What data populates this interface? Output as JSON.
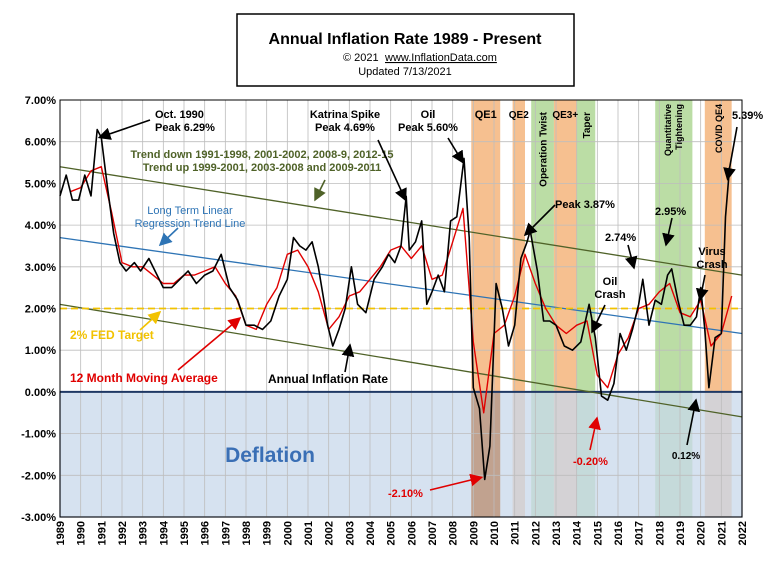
{
  "title_box": {
    "title": "Annual  Inflation Rate 1989 - Present",
    "copyright": "© 2021",
    "site": "www.InflationData.com",
    "updated": "Updated  7/13/2021"
  },
  "chart_data": {
    "type": "line",
    "ylim": [
      -3,
      7
    ],
    "xlim": [
      1989,
      2022
    ],
    "y_ticks": [
      "7.00%",
      "6.00%",
      "5.00%",
      "4.00%",
      "3.00%",
      "2.00%",
      "1.00%",
      "0.00%",
      "-1.00%",
      "-2.00%",
      "-3.00%"
    ],
    "y_tick_values": [
      7,
      6,
      5,
      4,
      3,
      2,
      1,
      0,
      -1,
      -2,
      -3
    ],
    "x_ticks": [
      "1989",
      "1990",
      "1991",
      "1992",
      "1993",
      "1994",
      "1995",
      "1996",
      "1997",
      "1998",
      "1999",
      "2000",
      "2001",
      "2002",
      "2003",
      "2004",
      "2005",
      "2006",
      "2007",
      "2008",
      "2009",
      "2010",
      "2011",
      "2012",
      "2013",
      "2014",
      "2015",
      "2016",
      "2017",
      "2018",
      "2019",
      "2020",
      "2021",
      "2022"
    ],
    "grid": true,
    "series": [
      {
        "name": "Annual Inflation Rate",
        "color": "#000000",
        "x": [
          1989.0,
          1989.3,
          1989.6,
          1989.9,
          1990.2,
          1990.5,
          1990.8,
          1991.0,
          1991.3,
          1991.6,
          1991.9,
          1992.2,
          1992.6,
          1992.9,
          1993.3,
          1993.7,
          1994.0,
          1994.4,
          1994.8,
          1995.2,
          1995.6,
          1996.0,
          1996.4,
          1996.8,
          1997.2,
          1997.6,
          1998.0,
          1998.4,
          1998.8,
          1999.2,
          1999.6,
          2000.0,
          2000.3,
          2000.6,
          2000.9,
          2001.2,
          2001.5,
          2001.8,
          2001.95,
          2002.2,
          2002.5,
          2002.8,
          2003.1,
          2003.4,
          2003.8,
          2004.2,
          2004.6,
          2004.9,
          2005.2,
          2005.5,
          2005.75,
          2005.9,
          2006.2,
          2006.5,
          2006.75,
          2007.0,
          2007.3,
          2007.6,
          2007.9,
          2008.2,
          2008.55,
          2008.8,
          2009.0,
          2009.3,
          2009.55,
          2009.8,
          2010.1,
          2010.4,
          2010.7,
          2011.0,
          2011.3,
          2011.6,
          2011.75,
          2012.1,
          2012.4,
          2012.7,
          2013.0,
          2013.4,
          2013.8,
          2014.2,
          2014.6,
          2014.9,
          2015.2,
          2015.5,
          2015.8,
          2016.1,
          2016.4,
          2016.7,
          2017.0,
          2017.2,
          2017.5,
          2017.8,
          2018.1,
          2018.4,
          2018.6,
          2018.9,
          2019.2,
          2019.5,
          2019.8,
          2020.0,
          2020.2,
          2020.4,
          2020.7,
          2021.0,
          2021.2,
          2021.4
        ],
        "values": [
          4.7,
          5.2,
          4.6,
          4.6,
          5.2,
          4.7,
          6.29,
          6.1,
          4.9,
          3.8,
          3.1,
          2.9,
          3.1,
          2.9,
          3.2,
          2.8,
          2.5,
          2.5,
          2.7,
          2.9,
          2.6,
          2.8,
          2.9,
          3.3,
          2.5,
          2.2,
          1.6,
          1.6,
          1.5,
          1.7,
          2.3,
          2.7,
          3.7,
          3.5,
          3.4,
          3.6,
          3.0,
          2.1,
          1.6,
          1.1,
          1.5,
          2.0,
          3.0,
          2.1,
          1.9,
          2.7,
          3.0,
          3.3,
          3.1,
          3.5,
          4.69,
          3.4,
          3.6,
          4.1,
          2.1,
          2.4,
          2.8,
          2.4,
          4.1,
          4.2,
          5.6,
          3.7,
          0.1,
          -0.4,
          -2.1,
          -1.3,
          2.6,
          2.0,
          1.1,
          1.6,
          3.2,
          3.6,
          3.87,
          2.9,
          1.7,
          1.7,
          1.6,
          1.1,
          1.0,
          1.2,
          2.1,
          1.3,
          -0.1,
          -0.2,
          0.2,
          1.4,
          1.0,
          1.5,
          2.1,
          2.7,
          1.6,
          2.2,
          2.1,
          2.8,
          2.95,
          2.2,
          1.6,
          1.6,
          1.8,
          2.5,
          1.5,
          0.1,
          1.3,
          1.4,
          4.2,
          5.39
        ]
      },
      {
        "name": "12 Month Moving Average",
        "color": "#e00000",
        "x": [
          1989.5,
          1990.0,
          1990.5,
          1991.0,
          1991.5,
          1992.0,
          1992.5,
          1993.0,
          1993.5,
          1994.0,
          1994.5,
          1995.0,
          1995.5,
          1996.0,
          1996.5,
          1997.0,
          1997.5,
          1998.0,
          1998.5,
          1999.0,
          1999.5,
          2000.0,
          2000.5,
          2001.0,
          2001.5,
          2002.0,
          2002.5,
          2003.0,
          2003.5,
          2004.0,
          2004.5,
          2005.0,
          2005.5,
          2006.0,
          2006.5,
          2007.0,
          2007.5,
          2008.0,
          2008.5,
          2009.0,
          2009.5,
          2010.0,
          2010.5,
          2011.0,
          2011.5,
          2012.0,
          2012.5,
          2013.0,
          2013.5,
          2014.0,
          2014.5,
          2015.0,
          2015.5,
          2016.0,
          2016.5,
          2017.0,
          2017.5,
          2018.0,
          2018.5,
          2019.0,
          2019.5,
          2020.0,
          2020.5,
          2021.0,
          2021.5
        ],
        "values": [
          4.8,
          4.9,
          5.3,
          5.4,
          4.3,
          3.1,
          3.0,
          3.0,
          2.8,
          2.6,
          2.6,
          2.8,
          2.8,
          2.9,
          3.0,
          2.6,
          2.3,
          1.6,
          1.5,
          2.1,
          2.5,
          3.3,
          3.4,
          3.0,
          2.4,
          1.5,
          1.8,
          2.3,
          2.4,
          2.7,
          3.0,
          3.4,
          3.5,
          3.2,
          3.5,
          2.7,
          2.8,
          3.6,
          4.4,
          1.2,
          -0.5,
          1.4,
          1.6,
          2.3,
          3.3,
          2.6,
          2.0,
          1.6,
          1.4,
          1.6,
          1.7,
          0.4,
          0.1,
          0.9,
          1.3,
          2.0,
          2.1,
          2.4,
          2.6,
          1.9,
          1.8,
          2.2,
          1.1,
          1.4,
          2.3
        ]
      }
    ],
    "reference_lines": [
      {
        "name": "2% FED Target",
        "value": 2.0,
        "color": "#f2c200"
      }
    ],
    "trend_lines": [
      {
        "x": [
          1989,
          2022
        ],
        "y": [
          5.4,
          2.8
        ]
      },
      {
        "x": [
          1989,
          2022
        ],
        "y": [
          3.7,
          1.4
        ]
      },
      {
        "x": [
          1989,
          2022
        ],
        "y": [
          2.1,
          -0.6
        ]
      }
    ],
    "bands": [
      {
        "label": "QE1",
        "start": 2008.9,
        "end": 2010.3,
        "color": "#f5bd8a"
      },
      {
        "label": "QE2",
        "start": 2010.9,
        "end": 2011.5,
        "color": "#f5bd8a"
      },
      {
        "label": "Operation Twist",
        "start": 2011.8,
        "end": 2012.9,
        "color": "#b7dba0"
      },
      {
        "label": "QE3+",
        "start": 2012.9,
        "end": 2014.0,
        "color": "#f5bd8a"
      },
      {
        "label": "Taper",
        "start": 2014.0,
        "end": 2014.9,
        "color": "#b7dba0"
      },
      {
        "label": "Quantitative Tightening",
        "start": 2017.8,
        "end": 2019.6,
        "color": "#b7dba0"
      },
      {
        "label": "COVID QE4",
        "start": 2020.2,
        "end": 2021.5,
        "color": "#f5bd8a"
      }
    ],
    "deflation_label": "Deflation",
    "annotations": [
      {
        "text": "Oct. 1990\nPeak 6.29%",
        "color": "#000000"
      },
      {
        "text": "Katrina Spike\nPeak 4.69%",
        "color": "#000000"
      },
      {
        "text": "Oil\nPeak 5.60%",
        "color": "#000000"
      },
      {
        "text": "Trend down 1991-1998,  2001-2002,  2008-9,  2012-15\nTrend  up  1999-2001,  2003-2008  and 2009-2011",
        "color": "#4f6228"
      },
      {
        "text": "Long Term Linear\nRegression Trend Line",
        "color": "#2e74b5"
      },
      {
        "text": "2% FED Target",
        "color": "#f2c200"
      },
      {
        "text": "12 Month Moving Average",
        "color": "#e00000"
      },
      {
        "text": "Annual Inflation Rate",
        "color": "#000000"
      },
      {
        "text": "Peak 3.87%",
        "color": "#000000"
      },
      {
        "text": "2.74%",
        "color": "#000000"
      },
      {
        "text": "2.95%",
        "color": "#000000"
      },
      {
        "text": "Oil\nCrash",
        "color": "#000000"
      },
      {
        "text": "Virus\nCrash",
        "color": "#000000"
      },
      {
        "text": "5.39%",
        "color": "#000000"
      },
      {
        "text": "-2.10%",
        "color": "#e00000"
      },
      {
        "text": "-0.20%",
        "color": "#e00000"
      },
      {
        "text": "0.12%",
        "color": "#000000"
      }
    ]
  }
}
